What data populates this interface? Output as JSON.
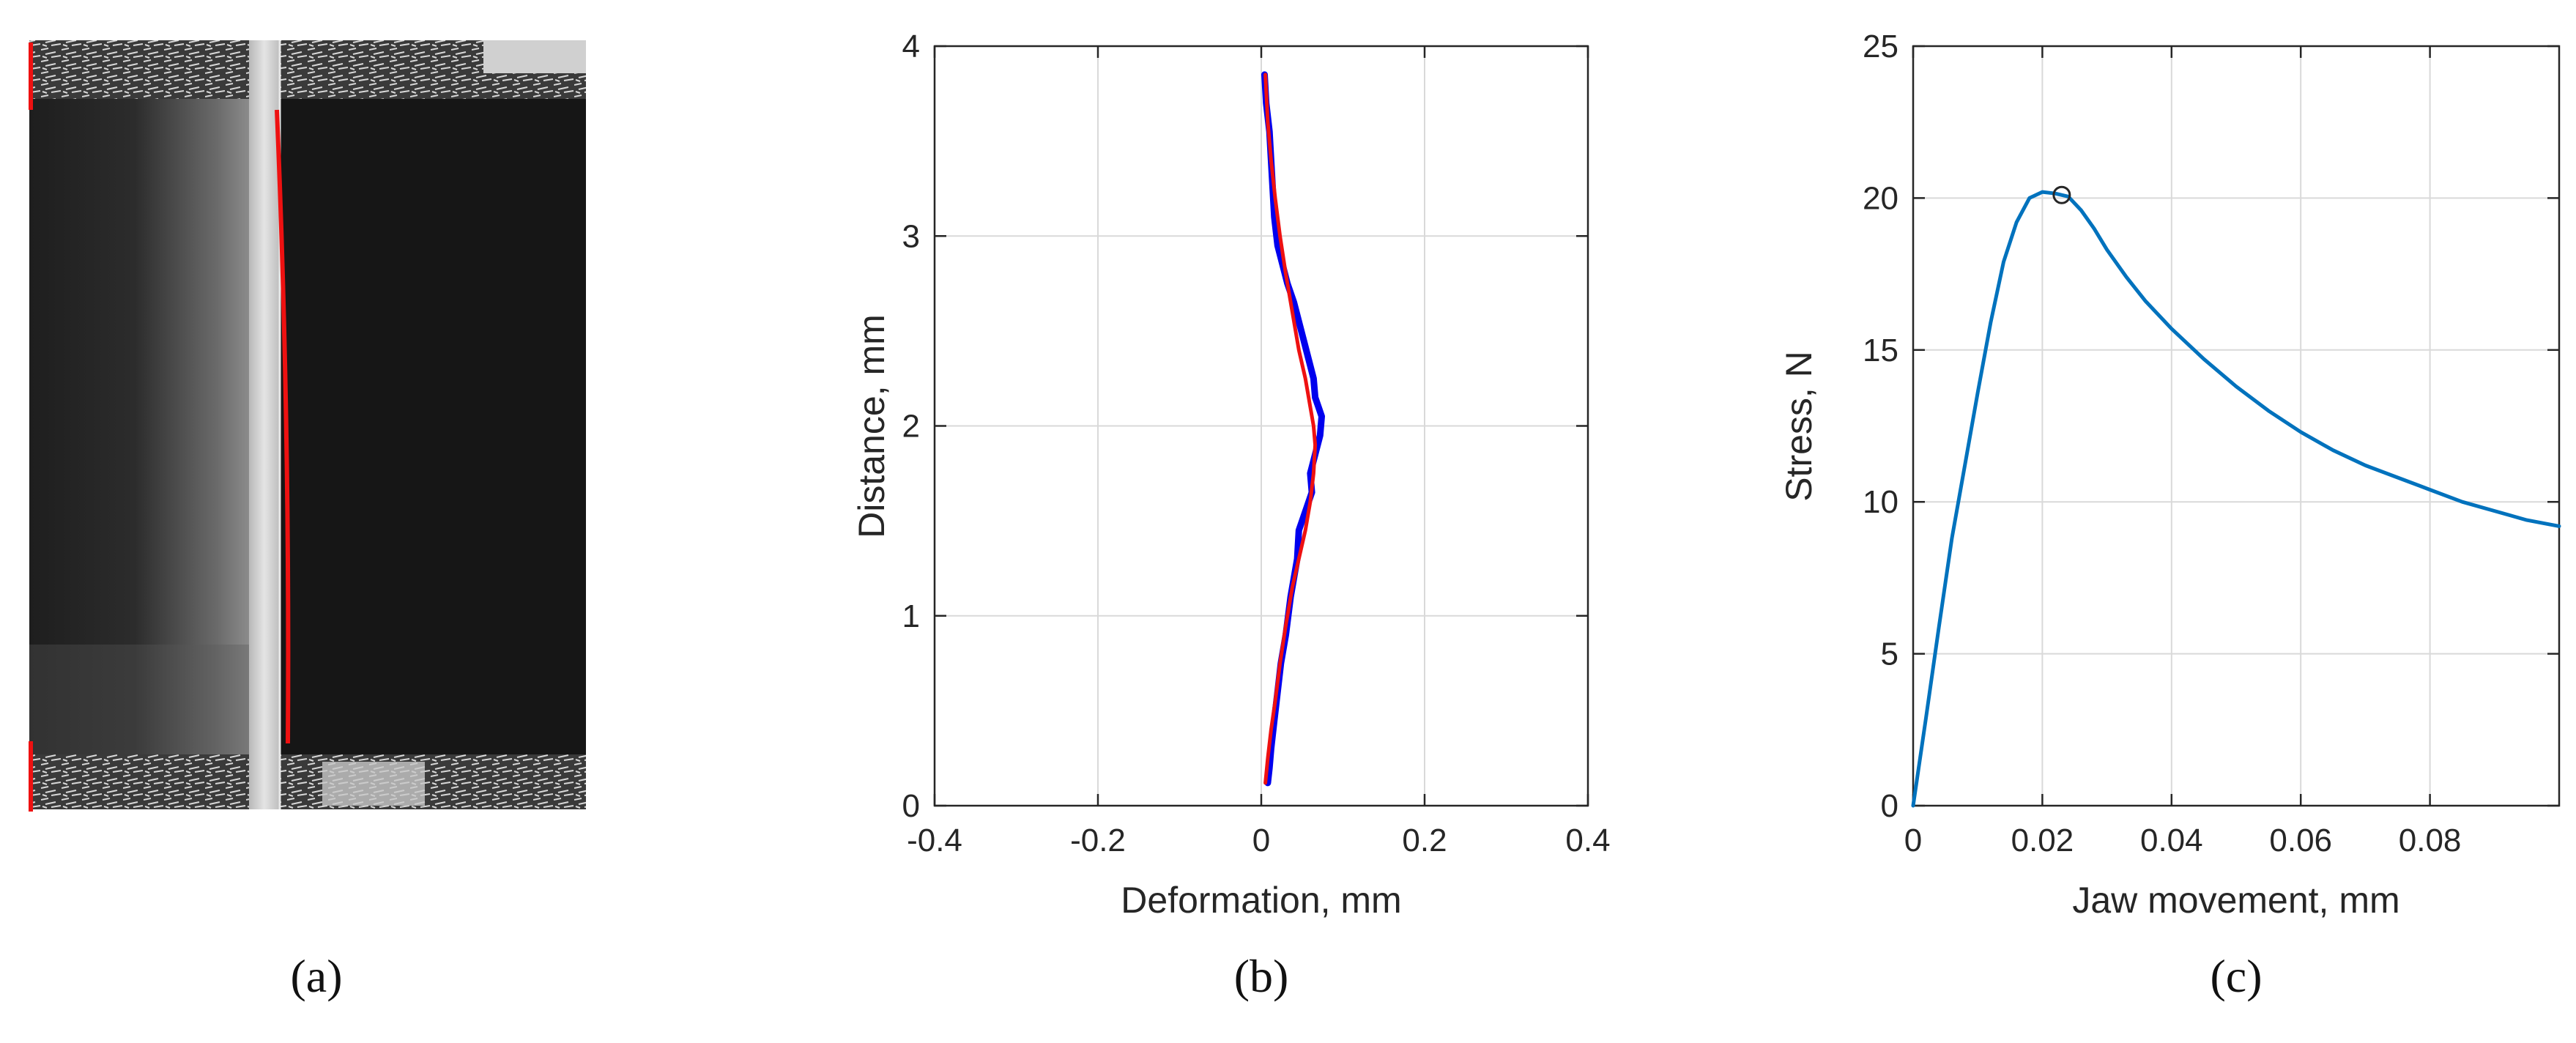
{
  "panels": [
    {
      "caption": "(a)"
    },
    {
      "caption": "(b)"
    },
    {
      "caption": "(c)"
    }
  ],
  "colors": {
    "deformation_raw": "#0000ee",
    "deformation_fit": "#ee1111",
    "stress_curve": "#0072bd",
    "specimen_edge": "#ee1111",
    "axis": "#262626",
    "grid": "#d9d9d9"
  },
  "chart_data": [
    {
      "type": "line",
      "panel": "(b)",
      "xlabel": "Deformation, mm",
      "ylabel": "Distance, mm",
      "xlim": [
        -0.4,
        0.4
      ],
      "ylim": [
        0,
        4
      ],
      "xticks": [
        -0.4,
        -0.2,
        0,
        0.2,
        0.4
      ],
      "xtick_labels": [
        "-0.4",
        "-0.2",
        "0",
        "0.2",
        "0.4"
      ],
      "yticks": [
        0,
        1,
        2,
        3,
        4
      ],
      "ytick_labels": [
        "0",
        "1",
        "2",
        "3",
        "4"
      ],
      "grid": true,
      "series": [
        {
          "x": [
            0.004,
            0.006,
            0.01,
            0.012,
            0.014,
            0.016,
            0.02,
            0.026,
            0.032,
            0.04,
            0.046,
            0.052,
            0.058,
            0.064,
            0.066,
            0.07,
            0.074,
            0.072,
            0.066,
            0.06,
            0.062,
            0.054,
            0.046,
            0.044,
            0.036,
            0.03,
            0.024,
            0.02,
            0.016,
            0.012,
            0.01,
            0.008
          ],
          "y": [
            3.85,
            3.7,
            3.55,
            3.4,
            3.25,
            3.1,
            2.95,
            2.85,
            2.75,
            2.65,
            2.55,
            2.45,
            2.35,
            2.25,
            2.15,
            2.1,
            2.05,
            1.95,
            1.85,
            1.75,
            1.65,
            1.55,
            1.45,
            1.3,
            1.1,
            0.9,
            0.75,
            0.6,
            0.45,
            0.3,
            0.2,
            0.12
          ],
          "color": "#0000ee"
        },
        {
          "x": [
            0.005,
            0.008,
            0.012,
            0.017,
            0.023,
            0.03,
            0.038,
            0.046,
            0.054,
            0.06,
            0.064,
            0.066,
            0.064,
            0.06,
            0.054,
            0.046,
            0.038,
            0.03,
            0.023,
            0.017,
            0.012,
            0.008,
            0.005
          ],
          "y": [
            3.85,
            3.6,
            3.4,
            3.2,
            3.0,
            2.8,
            2.6,
            2.4,
            2.25,
            2.1,
            2.0,
            1.9,
            1.75,
            1.6,
            1.45,
            1.3,
            1.15,
            0.95,
            0.75,
            0.55,
            0.4,
            0.25,
            0.12
          ],
          "color": "#ee1111"
        }
      ]
    },
    {
      "type": "line",
      "panel": "(c)",
      "xlabel": "Jaw movement, mm",
      "ylabel": "Stress, N",
      "xlim": [
        0,
        0.1
      ],
      "ylim": [
        0,
        25
      ],
      "xticks": [
        0,
        0.02,
        0.04,
        0.06,
        0.08
      ],
      "xtick_labels": [
        "0",
        "0.02",
        "0.04",
        "0.06",
        "0.08"
      ],
      "yticks": [
        0,
        5,
        10,
        15,
        20,
        25
      ],
      "ytick_labels": [
        "0",
        "5",
        "10",
        "15",
        "20",
        "25"
      ],
      "grid": true,
      "series": [
        {
          "x": [
            0,
            0.002,
            0.004,
            0.006,
            0.008,
            0.01,
            0.012,
            0.014,
            0.016,
            0.018,
            0.02,
            0.022,
            0.024,
            0.026,
            0.028,
            0.03,
            0.033,
            0.036,
            0.04,
            0.045,
            0.05,
            0.055,
            0.06,
            0.065,
            0.07,
            0.075,
            0.08,
            0.085,
            0.09,
            0.095,
            0.1
          ],
          "y": [
            0,
            2.9,
            5.9,
            8.8,
            11.2,
            13.6,
            15.9,
            17.9,
            19.2,
            20.0,
            20.2,
            20.15,
            20.05,
            19.6,
            19.0,
            18.3,
            17.4,
            16.6,
            15.7,
            14.7,
            13.8,
            13.0,
            12.3,
            11.7,
            11.2,
            10.8,
            10.4,
            10.0,
            9.7,
            9.4,
            9.2
          ],
          "color": "#0072bd"
        }
      ],
      "markers": [
        {
          "x": 0.023,
          "y": 20.1,
          "shape": "circle"
        }
      ]
    }
  ]
}
